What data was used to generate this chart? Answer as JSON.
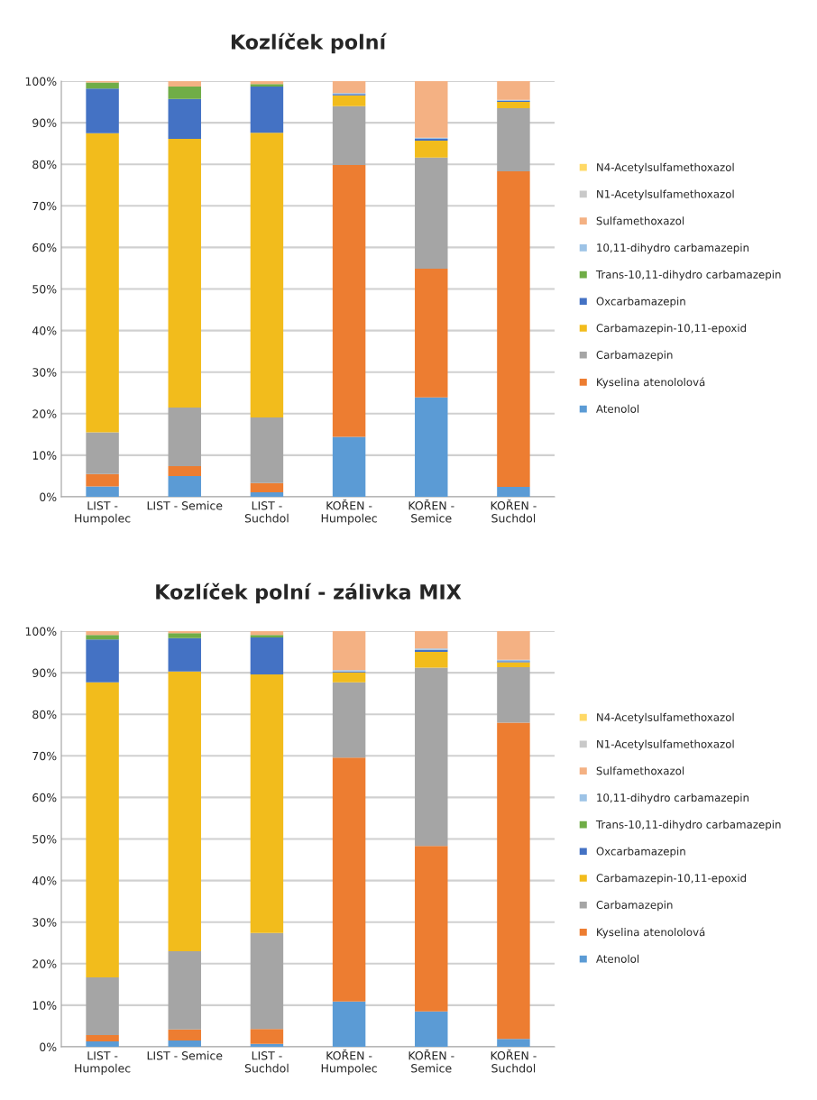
{
  "chart_data": [
    {
      "type": "bar",
      "title": "Kozlíček polní",
      "stacked": true,
      "legend": "right",
      "grid": "y",
      "categories": [
        "LIST -\nHumpolec",
        "LIST - Semice",
        "LIST -\nSuchdol",
        "KOŘEN -\nHumpolec",
        "KOŘEN -\nSemice",
        "KOŘEN -\nSuchdol"
      ],
      "ylim": [
        0,
        100
      ],
      "yticks": [
        {
          "value": 0,
          "label": "0%"
        },
        {
          "value": 10,
          "label": "10%"
        },
        {
          "value": 20,
          "label": "20%"
        },
        {
          "value": 30,
          "label": "30%"
        },
        {
          "value": 40,
          "label": "40%"
        },
        {
          "value": 50,
          "label": "50%"
        },
        {
          "value": 60,
          "label": "60%"
        },
        {
          "value": 70,
          "label": "70%"
        },
        {
          "value": 80,
          "label": "80%"
        },
        {
          "value": 90,
          "label": "90%"
        },
        {
          "value": 100,
          "label": "100%"
        }
      ],
      "series": [
        {
          "name": "Atenolol",
          "color": "#5b9bd5",
          "values": [
            2.5,
            5.0,
            1.1,
            14.4,
            23.9,
            2.4
          ]
        },
        {
          "name": "Kyselina atenololová",
          "color": "#ed7d31",
          "values": [
            3.0,
            2.4,
            2.2,
            65.4,
            31.0,
            75.9
          ]
        },
        {
          "name": "Carbamazepin",
          "color": "#a5a5a5",
          "values": [
            10.0,
            14.1,
            15.8,
            14.2,
            26.7,
            15.2
          ]
        },
        {
          "name": "Carbamazepin-10,11-epoxid",
          "color": "#f2bc1c",
          "values": [
            72.0,
            64.6,
            68.5,
            2.6,
            4.1,
            1.5
          ]
        },
        {
          "name": "Oxcarbamazepin",
          "color": "#4472c4",
          "values": [
            10.7,
            9.6,
            11.1,
            0.3,
            0.4,
            0.3
          ]
        },
        {
          "name": "Trans-10,11-dihydro carbamazepin",
          "color": "#70ad47",
          "values": [
            1.5,
            3.0,
            0.6,
            0,
            0,
            0
          ]
        },
        {
          "name": "10,11-dihydro carbamazepin",
          "color": "#9dc3e6",
          "values": [
            0,
            0,
            0,
            0.2,
            0.3,
            0.2
          ]
        },
        {
          "name": "Sulfamethoxazol",
          "color": "#f4b183",
          "values": [
            0.3,
            1.3,
            0.7,
            2.9,
            13.6,
            4.5
          ]
        },
        {
          "name": "N1-Acetylsulfamethoxazol",
          "color": "#c9c9c9",
          "values": [
            0,
            0,
            0,
            0,
            0,
            0
          ]
        },
        {
          "name": "N4-Acetylsulfamethoxazol",
          "color": "#ffd966",
          "values": [
            0,
            0,
            0,
            0,
            0,
            0
          ]
        }
      ]
    },
    {
      "type": "bar",
      "title": "Kozlíček polní - zálivka MIX",
      "stacked": true,
      "legend": "right",
      "grid": "y",
      "categories": [
        "LIST -\nHumpolec",
        "LIST - Semice",
        "LIST -\nSuchdol",
        "KOŘEN -\nHumpolec",
        "KOŘEN -\nSemice",
        "KOŘEN -\nSuchdol"
      ],
      "ylim": [
        0,
        100
      ],
      "yticks": [
        {
          "value": 0,
          "label": "0%"
        },
        {
          "value": 10,
          "label": "10%"
        },
        {
          "value": 20,
          "label": "20%"
        },
        {
          "value": 30,
          "label": "30%"
        },
        {
          "value": 40,
          "label": "40%"
        },
        {
          "value": 50,
          "label": "50%"
        },
        {
          "value": 60,
          "label": "60%"
        },
        {
          "value": 70,
          "label": "70%"
        },
        {
          "value": 80,
          "label": "80%"
        },
        {
          "value": 90,
          "label": "90%"
        },
        {
          "value": 100,
          "label": "100%"
        }
      ],
      "series": [
        {
          "name": "Atenolol",
          "color": "#5b9bd5",
          "values": [
            1.3,
            1.5,
            0.7,
            10.9,
            8.5,
            1.9
          ]
        },
        {
          "name": "Kyselina atenololová",
          "color": "#ed7d31",
          "values": [
            1.5,
            2.7,
            3.6,
            58.7,
            39.8,
            76.1
          ]
        },
        {
          "name": "Carbamazepin",
          "color": "#a5a5a5",
          "values": [
            13.9,
            18.8,
            23.1,
            18.1,
            42.9,
            13.3
          ]
        },
        {
          "name": "Carbamazepin-10,11-epoxid",
          "color": "#f2bc1c",
          "values": [
            71.0,
            67.3,
            62.2,
            2.4,
            3.8,
            1.2
          ]
        },
        {
          "name": "Oxcarbamazepin",
          "color": "#4472c4",
          "values": [
            10.3,
            8.0,
            8.9,
            0.2,
            0.5,
            0.3
          ]
        },
        {
          "name": "Trans-10,11-dihydro carbamazepin",
          "color": "#70ad47",
          "values": [
            1.1,
            1.2,
            0.6,
            0,
            0,
            0
          ]
        },
        {
          "name": "10,11-dihydro carbamazepin",
          "color": "#9dc3e6",
          "values": [
            0,
            0,
            0,
            0.3,
            0.3,
            0.3
          ]
        },
        {
          "name": "Sulfamethoxazol",
          "color": "#f4b183",
          "values": [
            0.9,
            0.5,
            0.9,
            9.4,
            4.2,
            6.9
          ]
        },
        {
          "name": "N1-Acetylsulfamethoxazol",
          "color": "#c9c9c9",
          "values": [
            0,
            0,
            0,
            0,
            0,
            0
          ]
        },
        {
          "name": "N4-Acetylsulfamethoxazol",
          "color": "#ffd966",
          "values": [
            0,
            0,
            0,
            0,
            0,
            0
          ]
        }
      ]
    }
  ]
}
